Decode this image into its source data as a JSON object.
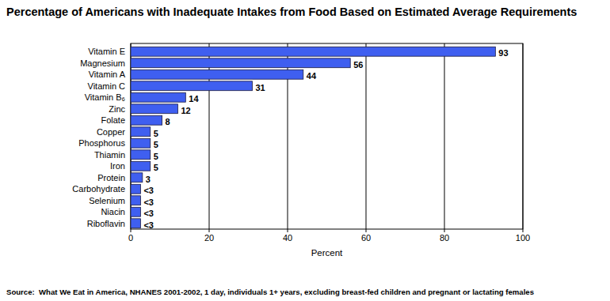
{
  "chart_data": {
    "type": "bar",
    "orientation": "horizontal",
    "title": "Percentage of Americans with Inadequate Intakes from Food Based on Estimated Average Requirements",
    "x_label": "Percent",
    "annotations": [
      "Source:  What We Eat in America, NHANES 2001-2002, 1 day, individuals 1+ years, excluding breast-fed children and pregnant or lactating females"
    ],
    "categories": [
      "Vitamin E",
      "Magnesium",
      "Vitamin A",
      "Vitamin C",
      "Vitamin B₆",
      "Zinc",
      "Folate",
      "Copper",
      "Phosphorus",
      "Thiamin",
      "Iron",
      "Protein",
      "Carbohydrate",
      "Selenium",
      "Niacin",
      "Riboflavin"
    ],
    "values": [
      93,
      56,
      44,
      31,
      14,
      12,
      8,
      5,
      5,
      5,
      5,
      3,
      2.5,
      2.5,
      2.5,
      2.5
    ],
    "value_labels": [
      "93",
      "56",
      "44",
      "31",
      "14",
      "12",
      "8",
      "5",
      "5",
      "5",
      "5",
      "3",
      "<3",
      "<3",
      "<3",
      "<3"
    ],
    "color": "#3f5ff0",
    "xlim": [
      0,
      100
    ],
    "xticks": [
      0,
      20,
      40,
      60,
      80,
      100
    ],
    "grid": true,
    "data_labels": true
  }
}
